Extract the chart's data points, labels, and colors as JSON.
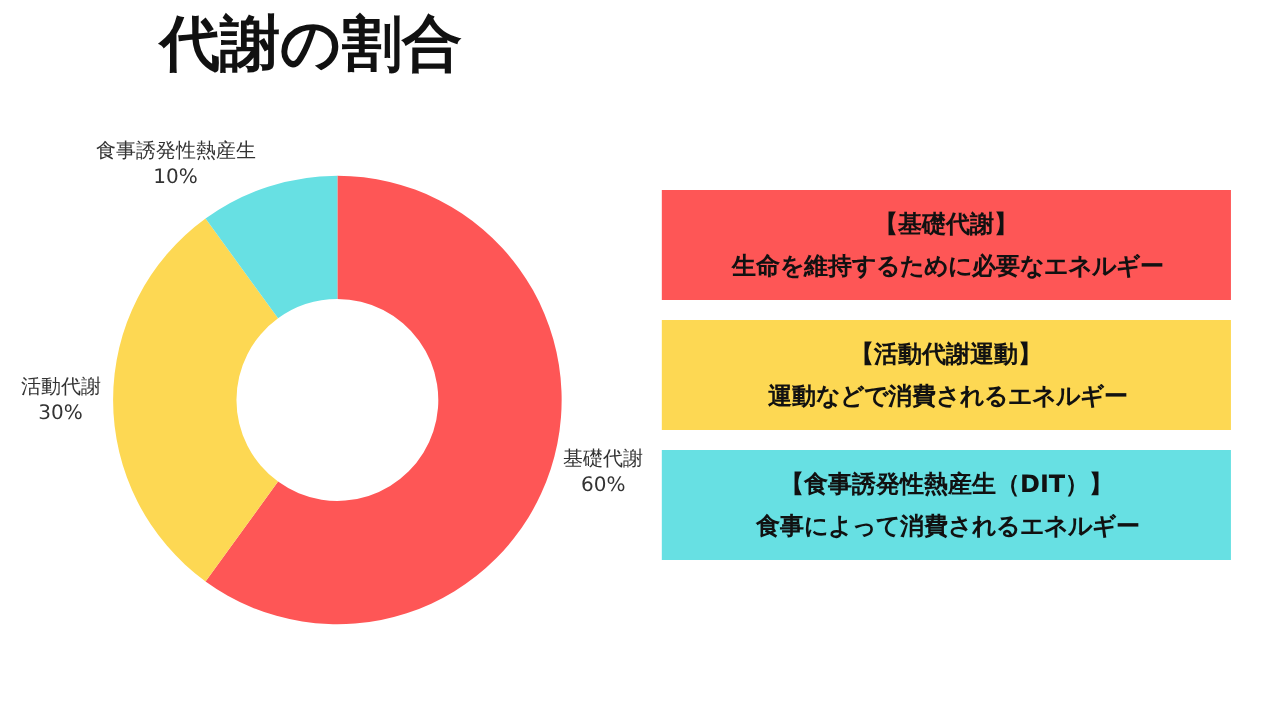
{
  "chart_data": {
    "type": "donut",
    "title": "代謝の割合",
    "categories": [
      "基礎代謝",
      "活動代謝",
      "食事誘発性熱産生"
    ],
    "values": [
      60,
      30,
      10
    ],
    "value_labels": [
      "60%",
      "30%",
      "10%"
    ],
    "colors": [
      "#fe5656",
      "#fdd853",
      "#67e0e3"
    ],
    "legend": false,
    "annotations": [
      "【基礎代謝】",
      "生命を維持するために必要なエネルギー",
      "【活動代謝運動】",
      "運動などで消費されるエネルギー",
      "【食事誘発性熱産生（DIT）】",
      "食事によって消費されるエネルギー"
    ]
  }
}
